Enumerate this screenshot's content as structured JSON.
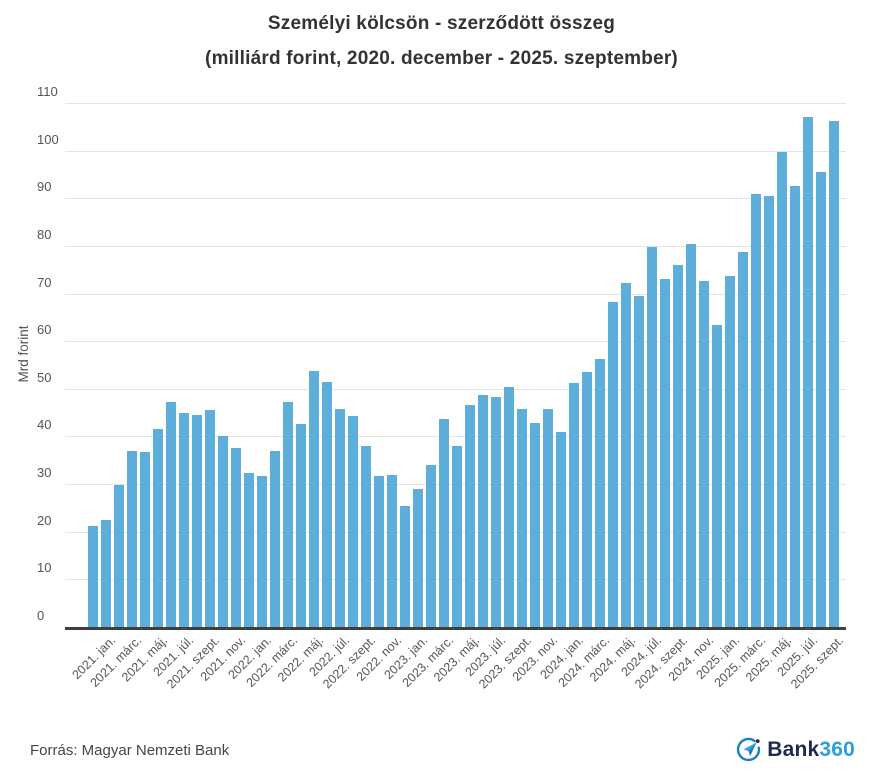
{
  "title": {
    "line1": "Személyi kölcsön - szerződött összeg",
    "line2": "(milliárd forint, 2020. december - 2025. szeptember)"
  },
  "y_axis": {
    "label": "Mrd forint",
    "ticks": [
      0,
      10,
      20,
      30,
      40,
      50,
      60,
      70,
      80,
      90,
      100,
      110
    ]
  },
  "footer": {
    "source": "Forrás: Magyar Nemzeti Bank",
    "logo_text_dark": "Bank",
    "logo_text_accent": "360"
  },
  "colors": {
    "bar": "#5daedb",
    "grid": "#e4e4e4",
    "axis": "#3f3f3f",
    "title": "#333333",
    "tick": "#555555",
    "logo_dark": "#1e2b4d",
    "logo_accent": "#2d9de0"
  },
  "chart_data": {
    "type": "bar",
    "title": "Személyi kölcsön - szerződött összeg",
    "subtitle": "(milliárd forint, 2020. december - 2025. szeptember)",
    "xlabel": "",
    "ylabel": "Mrd forint",
    "ylim": [
      0,
      110
    ],
    "grid": true,
    "legend": "none",
    "x": [
      "2020. dec.",
      "2021. jan.",
      "2021. febr.",
      "2021. márc.",
      "2021. ápr.",
      "2021. máj.",
      "2021. jún.",
      "2021. júl.",
      "2021. aug.",
      "2021. szept.",
      "2021. okt.",
      "2021. nov.",
      "2021. dec.",
      "2022. jan.",
      "2022. febr.",
      "2022. márc.",
      "2022. ápr.",
      "2022. máj.",
      "2022. jún.",
      "2022. júl.",
      "2022. aug.",
      "2022. szept.",
      "2022. okt.",
      "2022. nov.",
      "2022. dec.",
      "2023. jan.",
      "2023. febr.",
      "2023. márc.",
      "2023. ápr.",
      "2023. máj.",
      "2023. jún.",
      "2023. júl.",
      "2023. aug.",
      "2023. szept.",
      "2023. okt.",
      "2023. nov.",
      "2023. dec.",
      "2024. jan.",
      "2024. febr.",
      "2024. márc.",
      "2024. ápr.",
      "2024. máj.",
      "2024. jún.",
      "2024. júl.",
      "2024. aug.",
      "2024. szept.",
      "2024. okt.",
      "2024. nov.",
      "2024. dec.",
      "2025. jan.",
      "2025. febr.",
      "2025. márc.",
      "2025. ápr.",
      "2025. máj.",
      "2025. jún.",
      "2025. júl.",
      "2025. aug.",
      "2025. szept."
    ],
    "values": [
      21.2,
      22.4,
      29.9,
      36.9,
      36.7,
      41.6,
      47.3,
      44.9,
      44.5,
      45.6,
      40.0,
      37.5,
      32.3,
      31.6,
      37.0,
      47.3,
      42.6,
      53.8,
      51.5,
      45.8,
      44.2,
      38.1,
      31.6,
      32.0,
      25.5,
      29.0,
      34.0,
      43.7,
      37.9,
      46.6,
      48.8,
      48.3,
      50.4,
      45.8,
      42.9,
      45.8,
      41.0,
      51.3,
      53.5,
      56.3,
      68.2,
      72.2,
      69.5,
      79.8,
      73.0,
      76.0,
      80.4,
      72.7,
      63.5,
      73.7,
      78.8,
      90.9,
      90.4,
      99.8,
      92.6,
      107.0,
      95.6,
      106.2
    ],
    "x_tick_labels": [
      "2021. jan.",
      "2021. márc.",
      "2021. máj.",
      "2021. júl.",
      "2021. szept.",
      "2021. nov.",
      "2022. jan.",
      "2022. márc.",
      "2022. máj.",
      "2022. júl.",
      "2022. szept.",
      "2022. nov.",
      "2023. jan.",
      "2023. márc.",
      "2023. máj.",
      "2023. júl.",
      "2023. szept.",
      "2023. nov.",
      "2024. jan.",
      "2024. márc.",
      "2024. máj.",
      "2024. júl.",
      "2024. szept.",
      "2024. nov.",
      "2025. jan.",
      "2025. márc.",
      "2025. máj.",
      "2025. júl.",
      "2025. szept."
    ],
    "x_tick_every": 2,
    "x_tick_start_index": 1
  }
}
